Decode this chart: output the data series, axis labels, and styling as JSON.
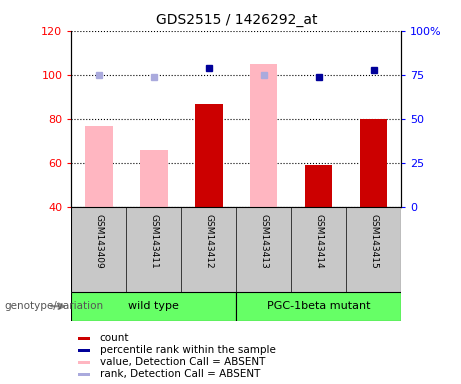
{
  "title": "GDS2515 / 1426292_at",
  "samples": [
    "GSM143409",
    "GSM143411",
    "GSM143412",
    "GSM143413",
    "GSM143414",
    "GSM143415"
  ],
  "count_values": [
    null,
    null,
    87,
    null,
    59,
    80
  ],
  "count_absent_values": [
    77,
    66,
    null,
    105,
    null,
    null
  ],
  "percentile_values": [
    null,
    null,
    79,
    null,
    74,
    78
  ],
  "rank_absent_values": [
    75,
    74,
    null,
    75,
    null,
    null
  ],
  "ylim_left": [
    40,
    120
  ],
  "ylim_right": [
    0,
    100
  ],
  "yticks_left": [
    40,
    60,
    80,
    100,
    120
  ],
  "yticks_right": [
    0,
    25,
    50,
    75,
    100
  ],
  "ytick_labels_left": [
    "40",
    "60",
    "80",
    "100",
    "120"
  ],
  "ytick_labels_right": [
    "0",
    "25",
    "50",
    "75",
    "100%"
  ],
  "count_color": "#CC0000",
  "count_absent_color": "#FFB6C1",
  "percentile_color": "#000099",
  "rank_absent_color": "#AAAADD",
  "background_color": "#C8C8C8",
  "group_label": "genotype/variation",
  "group1_name": "wild type",
  "group2_name": "PGC-1beta mutant",
  "group_color": "#66FF66",
  "legend_items": [
    {
      "color": "#CC0000",
      "label": "count"
    },
    {
      "color": "#000099",
      "label": "percentile rank within the sample"
    },
    {
      "color": "#FFB6C1",
      "label": "value, Detection Call = ABSENT"
    },
    {
      "color": "#AAAADD",
      "label": "rank, Detection Call = ABSENT"
    }
  ]
}
